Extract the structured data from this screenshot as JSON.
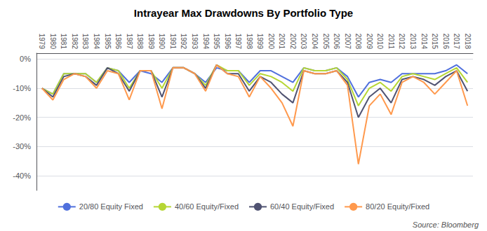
{
  "chart_data": {
    "type": "line",
    "title": "Intrayear Max Drawdowns By Portfolio Type",
    "annotation": "Source: Bloomberg",
    "categories": [
      "1979",
      "1980",
      "1981",
      "1982",
      "1983",
      "1984",
      "1985",
      "1986",
      "1987",
      "1988",
      "1989",
      "1990",
      "1991",
      "1992",
      "1993",
      "1994",
      "1995",
      "1996",
      "1997",
      "1998",
      "1999",
      "2000",
      "2001",
      "2002",
      "2003",
      "2004",
      "2005",
      "2006",
      "2007",
      "2008",
      "2009",
      "2010",
      "2011",
      "2012",
      "2013",
      "2014",
      "2015",
      "2016",
      "2017",
      "2018"
    ],
    "series": [
      {
        "name": "20/80 Equity Fixed",
        "values": [
          -10,
          -12,
          -5,
          -5,
          -5,
          -8,
          -3,
          -4,
          -8,
          -4,
          -5,
          -8,
          -3,
          -3,
          -5,
          -8,
          -3,
          -4,
          -4,
          -8,
          -4,
          -4,
          -6,
          -8,
          -3,
          -4,
          -4,
          -3,
          -6,
          -13,
          -8,
          -7,
          -8,
          -5,
          -5,
          -5,
          -5,
          -4,
          -2,
          -5
        ]
      },
      {
        "name": "40/60 Equity/Fixed",
        "values": [
          -10,
          -12,
          -5,
          -5,
          -5,
          -8,
          -3,
          -4,
          -10,
          -4,
          -4,
          -10,
          -3,
          -3,
          -5,
          -9,
          -2,
          -4,
          -4,
          -9,
          -5,
          -6,
          -8,
          -11,
          -3,
          -4,
          -4,
          -3,
          -7,
          -16,
          -10,
          -8,
          -11,
          -6,
          -5,
          -6,
          -7,
          -5,
          -3,
          -8
        ]
      },
      {
        "name": "60/40 Equity/Fixed",
        "values": [
          -10,
          -13,
          -6,
          -5,
          -6,
          -9,
          -3,
          -5,
          -11,
          -4,
          -4,
          -13,
          -3,
          -3,
          -5,
          -10,
          -2,
          -5,
          -5,
          -11,
          -6,
          -8,
          -12,
          -15,
          -4,
          -5,
          -5,
          -4,
          -8,
          -20,
          -13,
          -10,
          -15,
          -7,
          -6,
          -7,
          -9,
          -6,
          -4,
          -11
        ]
      },
      {
        "name": "80/20 Equity/Fixed",
        "values": [
          -10,
          -14,
          -7,
          -5,
          -6,
          -10,
          -4,
          -5,
          -14,
          -4,
          -4,
          -17,
          -3,
          -3,
          -5,
          -11,
          -2,
          -5,
          -6,
          -13,
          -6,
          -10,
          -15,
          -23,
          -4,
          -5,
          -5,
          -4,
          -9,
          -36,
          -16,
          -12,
          -19,
          -8,
          -6,
          -8,
          -12,
          -8,
          -4,
          -16
        ]
      }
    ],
    "ylim": [
      -45,
      2
    ],
    "yticks": [
      {
        "value": 0,
        "label": "0%"
      },
      {
        "value": -10,
        "label": "-10%"
      },
      {
        "value": -20,
        "label": "-20%"
      },
      {
        "value": -30,
        "label": "-30%"
      },
      {
        "value": -40,
        "label": "-40%"
      }
    ],
    "grid": true,
    "legend": "bottom"
  }
}
